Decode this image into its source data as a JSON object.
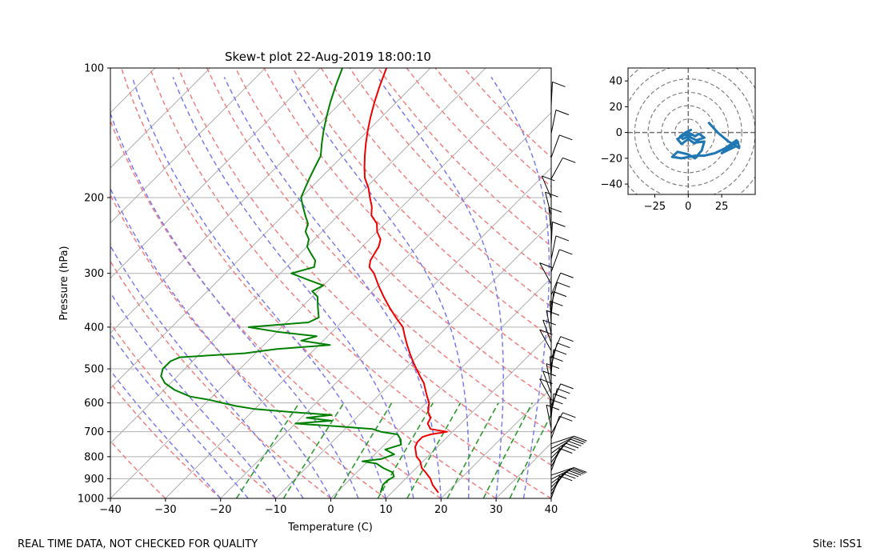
{
  "chart_data": [
    {
      "type": "line",
      "title": "Skew-t plot 22-Aug-2019 18:00:10",
      "xlabel": "Temperature (C)",
      "ylabel": "Pressure (hPa)",
      "xlim": [
        -40,
        40
      ],
      "ylim": [
        1000,
        100
      ],
      "yscale": "log",
      "xticks": [
        "−40",
        "−30",
        "−20",
        "−10",
        "0",
        "10",
        "20",
        "30",
        "40"
      ],
      "yticks": [
        "100",
        "200",
        "300",
        "400",
        "500",
        "600",
        "700",
        "800",
        "900",
        "1000"
      ],
      "grid": true,
      "series": [
        {
          "color": "#ee0000",
          "pressure": [
            970,
            930,
            900,
            870,
            850,
            820,
            800,
            780,
            760,
            740,
            720,
            710,
            700,
            690,
            670,
            650,
            630,
            600,
            580,
            560,
            540,
            520,
            500,
            480,
            460,
            440,
            420,
            400,
            380,
            360,
            340,
            320,
            300,
            290,
            280,
            270,
            260,
            250,
            240,
            230,
            220,
            210,
            200,
            190,
            180,
            170,
            160,
            150,
            140,
            130,
            120,
            110,
            100
          ],
          "values": [
            18.5,
            16.0,
            14.5,
            12.5,
            11.0,
            9.5,
            8.0,
            7.0,
            6.0,
            5.5,
            5.5,
            6.5,
            9.0,
            5.5,
            4.0,
            3.5,
            2.0,
            0.5,
            -1.0,
            -2.5,
            -4.0,
            -6.0,
            -8.0,
            -10.0,
            -12.0,
            -14.0,
            -16.0,
            -18.0,
            -21.0,
            -24.0,
            -27.0,
            -30.0,
            -33.0,
            -35.0,
            -36.0,
            -36.5,
            -37.0,
            -38.0,
            -40.0,
            -41.5,
            -44.0,
            -45.5,
            -47.5,
            -49.5,
            -52.0,
            -54.0,
            -56.0,
            -58.0,
            -60.0,
            -62.0,
            -64.0,
            -66.0,
            -68.0
          ]
        },
        {
          "color": "#008000",
          "pressure": [
            970,
            950,
            930,
            910,
            890,
            870,
            850,
            830,
            820,
            810,
            790,
            770,
            750,
            730,
            710,
            700,
            690,
            680,
            670,
            660,
            650,
            640,
            630,
            620,
            610,
            600,
            590,
            580,
            560,
            540,
            520,
            500,
            480,
            470,
            460,
            450,
            440,
            430,
            420,
            410,
            400,
            390,
            380,
            370,
            360,
            350,
            340,
            330,
            320,
            310,
            300,
            290,
            280,
            270,
            260,
            250,
            240,
            230,
            220,
            210,
            200,
            190,
            180,
            170,
            160,
            150,
            140,
            130,
            120,
            110,
            100
          ],
          "values": [
            8.0,
            7.5,
            7.0,
            7.0,
            7.5,
            6.5,
            4.0,
            2.0,
            -1.0,
            2.0,
            3.5,
            1.0,
            3.0,
            2.0,
            0.5,
            -3.0,
            -5.0,
            -12.0,
            -20.0,
            -14.0,
            -19.0,
            -15.0,
            -23.0,
            -30.0,
            -34.0,
            -37.0,
            -40.0,
            -44.0,
            -48.0,
            -51.0,
            -53.0,
            -54.0,
            -54.0,
            -53.0,
            -42.0,
            -37.0,
            -28.0,
            -34.0,
            -32.0,
            -40.0,
            -46.0,
            -36.0,
            -35.0,
            -36.0,
            -37.0,
            -38.0,
            -39.0,
            -41.0,
            -40.0,
            -44.0,
            -48.0,
            -45.0,
            -46.0,
            -48.0,
            -50.0,
            -51.0,
            -53.0,
            -54.0,
            -56.0,
            -58.0,
            -60.0,
            -61.0,
            -62.0,
            -63.0,
            -64.0,
            -66.0,
            -68.0,
            -70.0,
            -72.0,
            -74.0,
            -76.0
          ]
        }
      ]
    },
    {
      "type": "line",
      "title": "",
      "xlim": [
        -45,
        50
      ],
      "ylim": [
        -48,
        50
      ],
      "xticks": [
        "−25",
        "0",
        "25"
      ],
      "yticks": [
        "40",
        "20",
        "0",
        "−20",
        "−40"
      ],
      "rings": [
        10,
        20,
        30,
        40,
        50,
        60,
        70
      ],
      "series": [
        {
          "color": "#1f77b4",
          "u": [
            15,
            22,
            30,
            38,
            37,
            30,
            25,
            35,
            36,
            28,
            20,
            12,
            5,
            -5,
            -12,
            -8,
            0,
            5,
            10,
            12,
            4,
            0,
            -5,
            -8,
            -3,
            2,
            5,
            8,
            12,
            6,
            0,
            -4,
            -6,
            -2,
            2,
            0,
            -2,
            1,
            3
          ],
          "v": [
            8,
            0,
            -7,
            -12,
            -7,
            -12,
            -16,
            -11,
            -6,
            -12,
            -16,
            -18,
            -18,
            -20,
            -19,
            -15,
            -17,
            -20,
            -14,
            -7,
            -8,
            -5,
            -9,
            -5,
            -2,
            -1,
            -3,
            -1,
            -4,
            -6,
            -3,
            -5,
            -3,
            0,
            2,
            1,
            -2,
            -3,
            -1
          ]
        }
      ]
    }
  ],
  "footer": {
    "left": "REAL TIME DATA, NOT CHECKED FOR QUALITY",
    "right": "Site: ISS1"
  }
}
